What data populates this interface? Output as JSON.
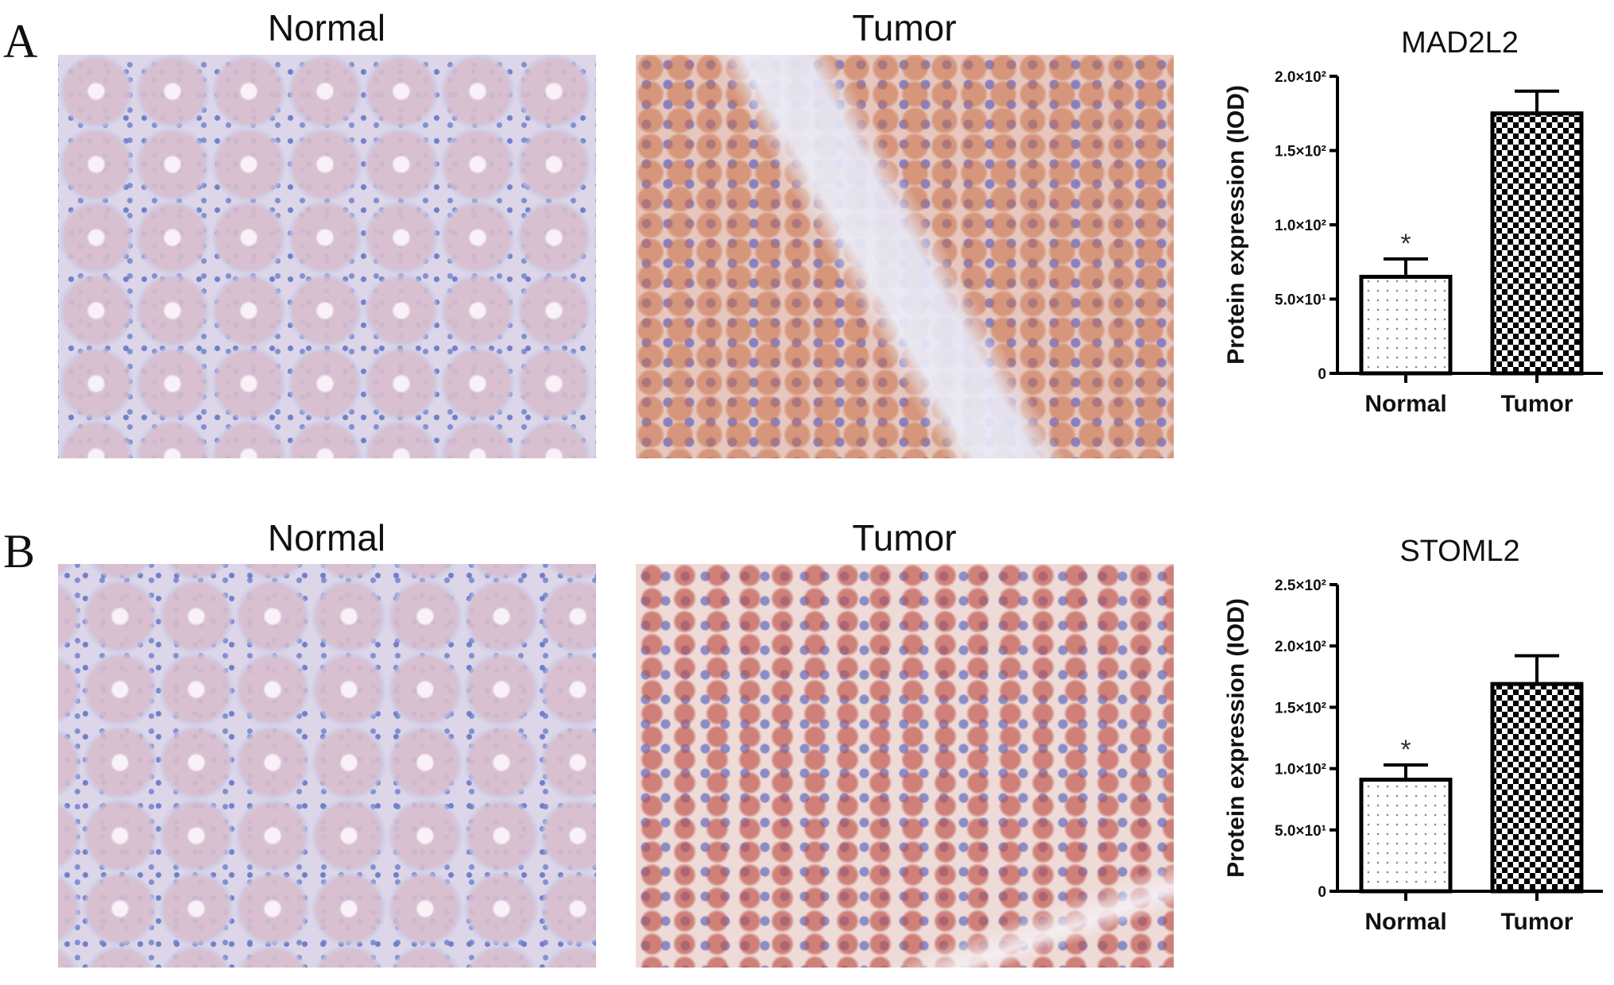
{
  "panels": [
    {
      "letter": "A",
      "normal_title": "Normal",
      "tumor_title": "Tumor"
    },
    {
      "letter": "B",
      "normal_title": "Normal",
      "tumor_title": "Tumor"
    }
  ],
  "chart_data": [
    {
      "type": "bar",
      "title": "MAD2L2",
      "ylabel": "Protein expression (IOD)",
      "xlabel": "",
      "categories": [
        "Normal",
        "Tumor"
      ],
      "values": [
        65,
        175
      ],
      "error_upper": [
        77,
        190
      ],
      "annotations": [
        "*",
        ""
      ],
      "ylim": [
        0,
        200
      ],
      "yticks": [
        0,
        50,
        100,
        150,
        200
      ],
      "ytick_labels": [
        "0",
        "5.0×10¹",
        "1.0×10²",
        "1.5×10²",
        "2.0×10²"
      ],
      "fills": [
        "dotted",
        "checkerboard"
      ],
      "grid": false
    },
    {
      "type": "bar",
      "title": "STOML2",
      "ylabel": "Protein expression (IOD)",
      "xlabel": "",
      "categories": [
        "Normal",
        "Tumor"
      ],
      "values": [
        91,
        169
      ],
      "error_upper": [
        103,
        192
      ],
      "annotations": [
        "*",
        ""
      ],
      "ylim": [
        0,
        250
      ],
      "yticks": [
        0,
        50,
        100,
        150,
        200,
        250
      ],
      "ytick_labels": [
        "0",
        "5.0×10¹",
        "1.0×10²",
        "1.5×10²",
        "2.0×10²",
        "2.5×10²"
      ],
      "fills": [
        "dotted",
        "checkerboard"
      ],
      "grid": false
    }
  ]
}
